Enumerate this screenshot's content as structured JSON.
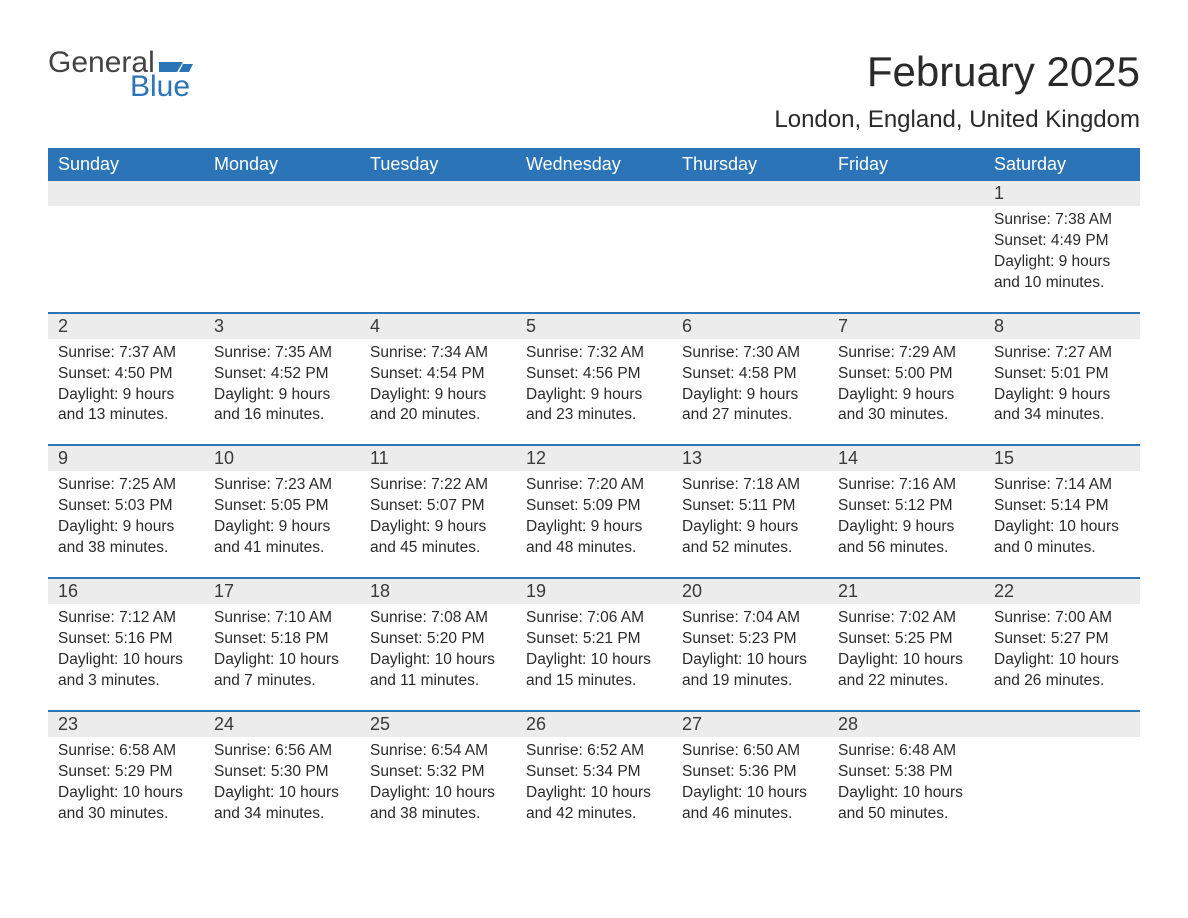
{
  "logo": {
    "general": "General",
    "blue": "Blue"
  },
  "title": "February 2025",
  "location": "London, England, United Kingdom",
  "colors": {
    "header_bg": "#2b74b8",
    "header_text": "#ffffff",
    "accent_line": "#2b74b8",
    "daynum_bg": "#ececec",
    "logo_gray": "#444444",
    "logo_blue": "#2b74b8",
    "body_text": "#2a2a2a",
    "page_bg": "#ffffff"
  },
  "layout": {
    "columns": 7,
    "rows": 5,
    "first_day_column_index": 6,
    "title_fontsize": 42,
    "location_fontsize": 24,
    "dow_fontsize": 18,
    "daynum_fontsize": 18,
    "body_fontsize": 15.5
  },
  "days_of_week": [
    "Sunday",
    "Monday",
    "Tuesday",
    "Wednesday",
    "Thursday",
    "Friday",
    "Saturday"
  ],
  "weeks": [
    [
      null,
      null,
      null,
      null,
      null,
      null,
      {
        "n": "1",
        "sunrise": "Sunrise: 7:38 AM",
        "sunset": "Sunset: 4:49 PM",
        "daylight1": "Daylight: 9 hours",
        "daylight2": "and 10 minutes."
      }
    ],
    [
      {
        "n": "2",
        "sunrise": "Sunrise: 7:37 AM",
        "sunset": "Sunset: 4:50 PM",
        "daylight1": "Daylight: 9 hours",
        "daylight2": "and 13 minutes."
      },
      {
        "n": "3",
        "sunrise": "Sunrise: 7:35 AM",
        "sunset": "Sunset: 4:52 PM",
        "daylight1": "Daylight: 9 hours",
        "daylight2": "and 16 minutes."
      },
      {
        "n": "4",
        "sunrise": "Sunrise: 7:34 AM",
        "sunset": "Sunset: 4:54 PM",
        "daylight1": "Daylight: 9 hours",
        "daylight2": "and 20 minutes."
      },
      {
        "n": "5",
        "sunrise": "Sunrise: 7:32 AM",
        "sunset": "Sunset: 4:56 PM",
        "daylight1": "Daylight: 9 hours",
        "daylight2": "and 23 minutes."
      },
      {
        "n": "6",
        "sunrise": "Sunrise: 7:30 AM",
        "sunset": "Sunset: 4:58 PM",
        "daylight1": "Daylight: 9 hours",
        "daylight2": "and 27 minutes."
      },
      {
        "n": "7",
        "sunrise": "Sunrise: 7:29 AM",
        "sunset": "Sunset: 5:00 PM",
        "daylight1": "Daylight: 9 hours",
        "daylight2": "and 30 minutes."
      },
      {
        "n": "8",
        "sunrise": "Sunrise: 7:27 AM",
        "sunset": "Sunset: 5:01 PM",
        "daylight1": "Daylight: 9 hours",
        "daylight2": "and 34 minutes."
      }
    ],
    [
      {
        "n": "9",
        "sunrise": "Sunrise: 7:25 AM",
        "sunset": "Sunset: 5:03 PM",
        "daylight1": "Daylight: 9 hours",
        "daylight2": "and 38 minutes."
      },
      {
        "n": "10",
        "sunrise": "Sunrise: 7:23 AM",
        "sunset": "Sunset: 5:05 PM",
        "daylight1": "Daylight: 9 hours",
        "daylight2": "and 41 minutes."
      },
      {
        "n": "11",
        "sunrise": "Sunrise: 7:22 AM",
        "sunset": "Sunset: 5:07 PM",
        "daylight1": "Daylight: 9 hours",
        "daylight2": "and 45 minutes."
      },
      {
        "n": "12",
        "sunrise": "Sunrise: 7:20 AM",
        "sunset": "Sunset: 5:09 PM",
        "daylight1": "Daylight: 9 hours",
        "daylight2": "and 48 minutes."
      },
      {
        "n": "13",
        "sunrise": "Sunrise: 7:18 AM",
        "sunset": "Sunset: 5:11 PM",
        "daylight1": "Daylight: 9 hours",
        "daylight2": "and 52 minutes."
      },
      {
        "n": "14",
        "sunrise": "Sunrise: 7:16 AM",
        "sunset": "Sunset: 5:12 PM",
        "daylight1": "Daylight: 9 hours",
        "daylight2": "and 56 minutes."
      },
      {
        "n": "15",
        "sunrise": "Sunrise: 7:14 AM",
        "sunset": "Sunset: 5:14 PM",
        "daylight1": "Daylight: 10 hours",
        "daylight2": "and 0 minutes."
      }
    ],
    [
      {
        "n": "16",
        "sunrise": "Sunrise: 7:12 AM",
        "sunset": "Sunset: 5:16 PM",
        "daylight1": "Daylight: 10 hours",
        "daylight2": "and 3 minutes."
      },
      {
        "n": "17",
        "sunrise": "Sunrise: 7:10 AM",
        "sunset": "Sunset: 5:18 PM",
        "daylight1": "Daylight: 10 hours",
        "daylight2": "and 7 minutes."
      },
      {
        "n": "18",
        "sunrise": "Sunrise: 7:08 AM",
        "sunset": "Sunset: 5:20 PM",
        "daylight1": "Daylight: 10 hours",
        "daylight2": "and 11 minutes."
      },
      {
        "n": "19",
        "sunrise": "Sunrise: 7:06 AM",
        "sunset": "Sunset: 5:21 PM",
        "daylight1": "Daylight: 10 hours",
        "daylight2": "and 15 minutes."
      },
      {
        "n": "20",
        "sunrise": "Sunrise: 7:04 AM",
        "sunset": "Sunset: 5:23 PM",
        "daylight1": "Daylight: 10 hours",
        "daylight2": "and 19 minutes."
      },
      {
        "n": "21",
        "sunrise": "Sunrise: 7:02 AM",
        "sunset": "Sunset: 5:25 PM",
        "daylight1": "Daylight: 10 hours",
        "daylight2": "and 22 minutes."
      },
      {
        "n": "22",
        "sunrise": "Sunrise: 7:00 AM",
        "sunset": "Sunset: 5:27 PM",
        "daylight1": "Daylight: 10 hours",
        "daylight2": "and 26 minutes."
      }
    ],
    [
      {
        "n": "23",
        "sunrise": "Sunrise: 6:58 AM",
        "sunset": "Sunset: 5:29 PM",
        "daylight1": "Daylight: 10 hours",
        "daylight2": "and 30 minutes."
      },
      {
        "n": "24",
        "sunrise": "Sunrise: 6:56 AM",
        "sunset": "Sunset: 5:30 PM",
        "daylight1": "Daylight: 10 hours",
        "daylight2": "and 34 minutes."
      },
      {
        "n": "25",
        "sunrise": "Sunrise: 6:54 AM",
        "sunset": "Sunset: 5:32 PM",
        "daylight1": "Daylight: 10 hours",
        "daylight2": "and 38 minutes."
      },
      {
        "n": "26",
        "sunrise": "Sunrise: 6:52 AM",
        "sunset": "Sunset: 5:34 PM",
        "daylight1": "Daylight: 10 hours",
        "daylight2": "and 42 minutes."
      },
      {
        "n": "27",
        "sunrise": "Sunrise: 6:50 AM",
        "sunset": "Sunset: 5:36 PM",
        "daylight1": "Daylight: 10 hours",
        "daylight2": "and 46 minutes."
      },
      {
        "n": "28",
        "sunrise": "Sunrise: 6:48 AM",
        "sunset": "Sunset: 5:38 PM",
        "daylight1": "Daylight: 10 hours",
        "daylight2": "and 50 minutes."
      },
      null
    ]
  ]
}
